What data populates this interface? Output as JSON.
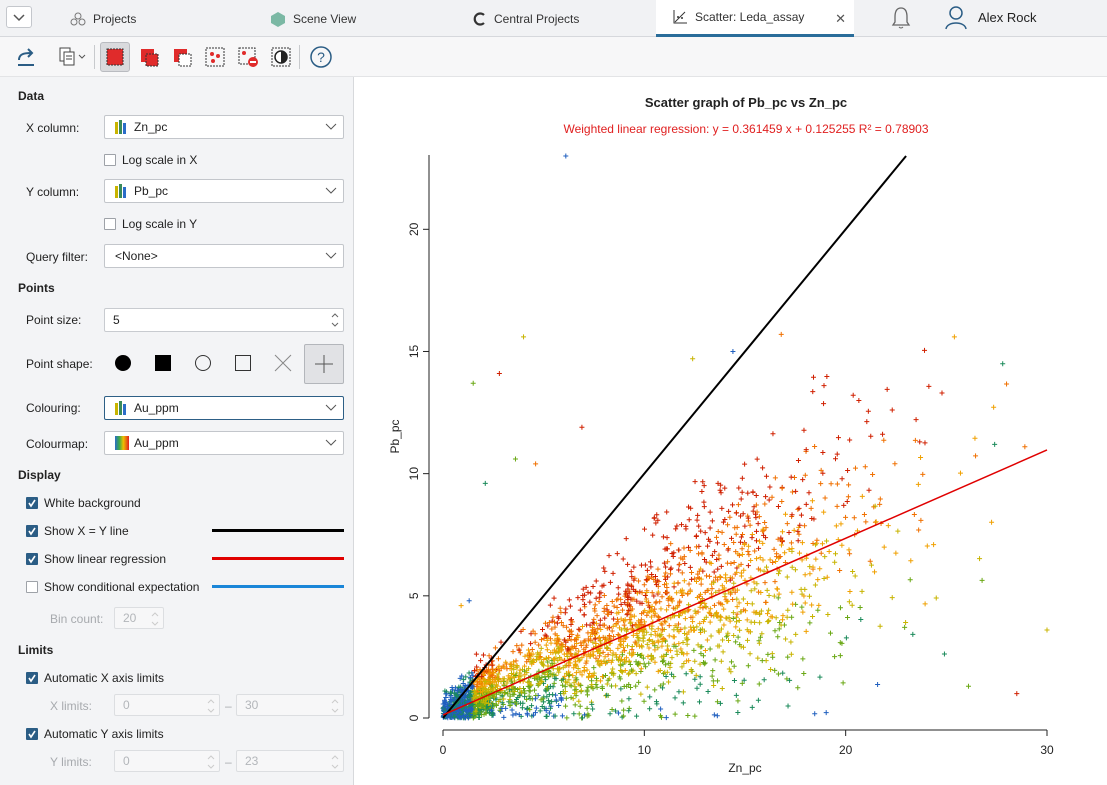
{
  "tabs": [
    {
      "label": "Projects",
      "icon": "projects-icon"
    },
    {
      "label": "Scene View",
      "icon": "scene-view-icon"
    },
    {
      "label": "Central Projects",
      "icon": "central-icon"
    },
    {
      "label": "Scatter: Leda_assay",
      "icon": "scatter-icon",
      "active": true
    }
  ],
  "user": {
    "name": "Alex Rock"
  },
  "panel": {
    "data_section": "Data",
    "x_column_label": "X column:",
    "x_column_value": "Zn_pc",
    "log_x_label": "Log scale in X",
    "y_column_label": "Y column:",
    "y_column_value": "Pb_pc",
    "log_y_label": "Log scale in Y",
    "query_filter_label": "Query filter:",
    "query_filter_value": "<None>",
    "points_section": "Points",
    "point_size_label": "Point size:",
    "point_size_value": "5",
    "point_shape_label": "Point shape:",
    "colouring_label": "Colouring:",
    "colouring_value": "Au_ppm",
    "colourmap_label": "Colourmap:",
    "colourmap_value": "Au_ppm",
    "display_section": "Display",
    "white_bg_label": "White background",
    "xy_line_label": "Show X = Y line",
    "regression_label": "Show linear regression",
    "conditional_label": "Show conditional expectation",
    "bin_count_label": "Bin count:",
    "bin_count_value": "20",
    "limits_section": "Limits",
    "auto_x_label": "Automatic X axis limits",
    "x_limits_label": "X limits:",
    "x_limit_min": "0",
    "x_limit_max": "30",
    "auto_y_label": "Automatic Y axis limits",
    "y_limits_label": "Y limits:",
    "y_limit_min": "0",
    "y_limit_max": "23",
    "dash": "–"
  },
  "colors": {
    "xy_line": "#000000",
    "regression": "#e00000",
    "conditional": "#1a86d8",
    "accent": "#2b5d85",
    "selection_red": "#e02b2b"
  },
  "chart_data": {
    "type": "scatter",
    "title": "Scatter graph of Pb_pc vs Zn_pc",
    "subtitle": "Weighted linear regression: y = 0.361459 x + 0.125255 R² = 0.78903",
    "xlabel": "Zn_pc",
    "ylabel": "Pb_pc",
    "xlim": [
      0,
      30
    ],
    "ylim": [
      0,
      23
    ],
    "xticks": [
      0,
      10,
      20,
      30
    ],
    "yticks": [
      0,
      5,
      10,
      15,
      20
    ],
    "marker": "+",
    "regression": {
      "slope": 0.361459,
      "intercept": 0.125255,
      "r2": 0.78903
    },
    "xy_line": true,
    "points_outliers": [
      {
        "x": 6.1,
        "y": 23.0
      },
      {
        "x": 4.0,
        "y": 15.6
      },
      {
        "x": 2.8,
        "y": 14.1
      },
      {
        "x": 1.5,
        "y": 13.7
      },
      {
        "x": 16.8,
        "y": 15.7
      },
      {
        "x": 27.8,
        "y": 14.5
      },
      {
        "x": 25.4,
        "y": 15.6
      },
      {
        "x": 14.4,
        "y": 15.0
      },
      {
        "x": 12.4,
        "y": 14.7
      },
      {
        "x": 6.9,
        "y": 11.9
      },
      {
        "x": 3.6,
        "y": 10.6
      },
      {
        "x": 4.6,
        "y": 10.4
      },
      {
        "x": 2.1,
        "y": 9.6
      },
      {
        "x": 0.9,
        "y": 4.6
      },
      {
        "x": 1.3,
        "y": 4.8
      },
      {
        "x": 30.0,
        "y": 3.6
      },
      {
        "x": 28.5,
        "y": 1.0
      },
      {
        "x": 26.1,
        "y": 1.3
      },
      {
        "x": 28.9,
        "y": 11.1
      },
      {
        "x": 27.4,
        "y": 11.2
      }
    ],
    "points_cloud_description": "dense cloud of several thousand points along regression trend, Zn 0-28, Pb 0-13",
    "colour_ramp": [
      "#1f5fbf",
      "#1a8a5a",
      "#6aa814",
      "#c8b400",
      "#f0a000",
      "#f07000",
      "#d02000"
    ]
  }
}
